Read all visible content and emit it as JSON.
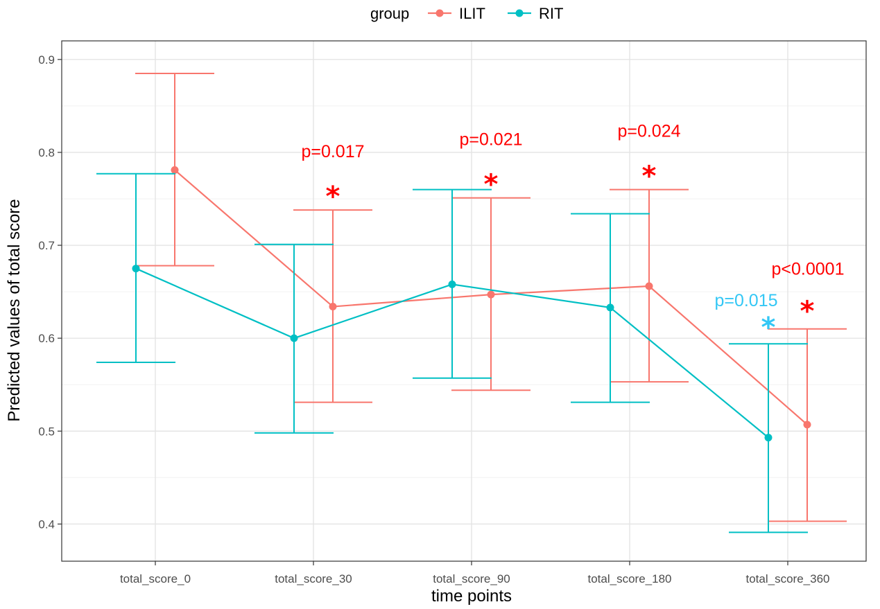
{
  "chart_data": {
    "type": "line",
    "xlabel": "time points",
    "ylabel": "Predicted values of total score",
    "categories": [
      "total_score_0",
      "total_score_30",
      "total_score_90",
      "total_score_180",
      "total_score_360"
    ],
    "ylim": [
      0.36,
      0.92
    ],
    "yticks": [
      0.4,
      0.5,
      0.6,
      0.7,
      0.8,
      0.9
    ],
    "ytick_labels": [
      "0.4",
      "0.5",
      "0.6",
      "0.7",
      "0.8",
      "0.9"
    ],
    "grid": true,
    "legend": {
      "title": "group",
      "position": "top"
    },
    "series": [
      {
        "name": "ILIT",
        "color": "#F8766D",
        "values": [
          0.781,
          0.634,
          0.647,
          0.656,
          0.507
        ],
        "lower": [
          0.678,
          0.531,
          0.544,
          0.553,
          0.403
        ],
        "upper": [
          0.885,
          0.738,
          0.751,
          0.76,
          0.61
        ]
      },
      {
        "name": "RIT",
        "color": "#00BFC4",
        "values": [
          0.675,
          0.6,
          0.658,
          0.633,
          0.493
        ],
        "lower": [
          0.574,
          0.498,
          0.557,
          0.531,
          0.391
        ],
        "upper": [
          0.777,
          0.701,
          0.76,
          0.734,
          0.594
        ]
      }
    ],
    "annotations": [
      {
        "text": "p=0.017",
        "category": 1,
        "series": "ILIT",
        "color": "#FF0000"
      },
      {
        "text": "p=0.021",
        "category": 2,
        "series": "ILIT",
        "color": "#FF0000"
      },
      {
        "text": "p=0.024",
        "category": 3,
        "series": "ILIT",
        "color": "#FF0000"
      },
      {
        "text": "p<0.0001",
        "category": 4,
        "series": "ILIT",
        "color": "#FF0000"
      },
      {
        "text": "p=0.015",
        "category": 4,
        "series": "RIT",
        "color": "#33C7F5"
      }
    ],
    "star_symbol": "*"
  }
}
